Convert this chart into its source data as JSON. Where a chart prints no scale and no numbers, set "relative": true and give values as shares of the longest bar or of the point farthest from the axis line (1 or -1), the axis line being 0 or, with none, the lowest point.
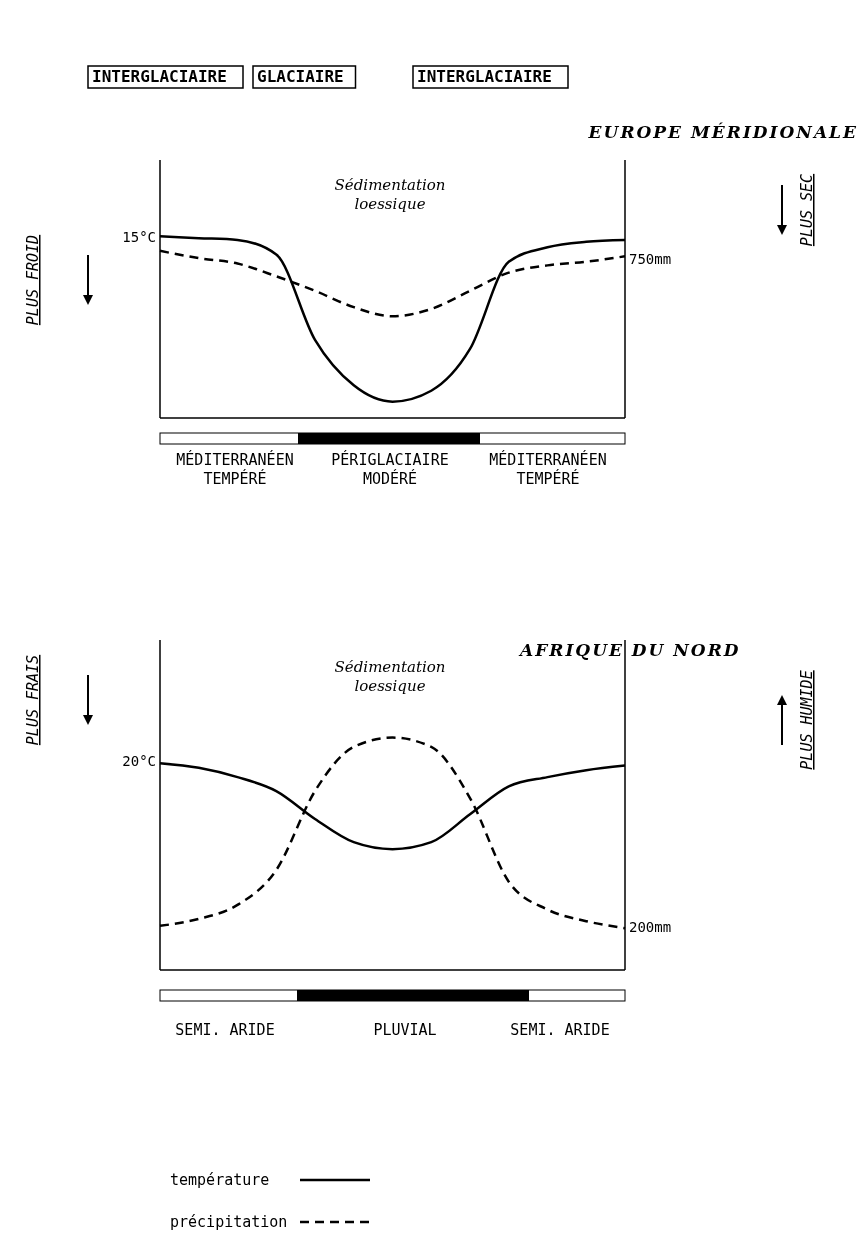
{
  "chart_data": [
    {
      "type": "line",
      "title": "EUROPE MÉRIDIONALE",
      "relative": true,
      "categories": [
        null,
        null,
        null,
        null,
        null,
        null,
        null,
        null,
        null,
        null,
        null,
        null,
        null
      ],
      "series": [
        {
          "color": "#000000",
          "line_style": "solid",
          "values": [
            1.0,
            0.99,
            0.98,
            0.9,
            0.43,
            0.18,
            0.09,
            0.15,
            0.38,
            0.86,
            0.94,
            0.97,
            0.98
          ]
        },
        {
          "color": "#000000",
          "line_style": "dashed",
          "values": [
            0.92,
            0.88,
            0.85,
            0.78,
            0.7,
            0.61,
            0.56,
            0.6,
            0.7,
            0.8,
            0.84,
            0.86,
            0.89
          ]
        }
      ],
      "annotations": [
        "INTERGLACIAIRE",
        "GLACIAIRE",
        "INTERGLACIAIRE",
        "Sédimentation\nloessique",
        "15°C",
        "750mm",
        "PLUS FROID",
        "PLUS SEC",
        "MÉDITERRANÉEN\nTEMPÉRÉ",
        "PÉRIGLACIAIRE\nMODÉRÉ",
        "MÉDITERRANÉEN\nTEMPÉRÉ"
      ],
      "legend": false
    },
    {
      "type": "line",
      "title": "AFRIQUE DU NORD",
      "relative": true,
      "categories": [
        null,
        null,
        null,
        null,
        null,
        null,
        null,
        null,
        null,
        null,
        null,
        null,
        null
      ],
      "series": [
        {
          "name": "température",
          "color": "#000000",
          "line_style": "solid",
          "values": [
            0.89,
            0.87,
            0.83,
            0.77,
            0.65,
            0.55,
            0.52,
            0.55,
            0.67,
            0.79,
            0.83,
            0.86,
            0.88
          ]
        },
        {
          "name": "précipitation",
          "color": "#000000",
          "line_style": "dashed",
          "values": [
            0.19,
            0.22,
            0.28,
            0.43,
            0.77,
            0.96,
            1.0,
            0.96,
            0.74,
            0.38,
            0.26,
            0.21,
            0.18
          ]
        }
      ],
      "annotations": [
        "Sédimentation\nloessique",
        "20°C",
        "200mm",
        "PLUS FRAIS",
        "PLUS HUMIDE",
        "SEMI. ARIDE",
        "PLUVIAL",
        "SEMI. ARIDE"
      ],
      "legend": "bottom"
    }
  ]
}
